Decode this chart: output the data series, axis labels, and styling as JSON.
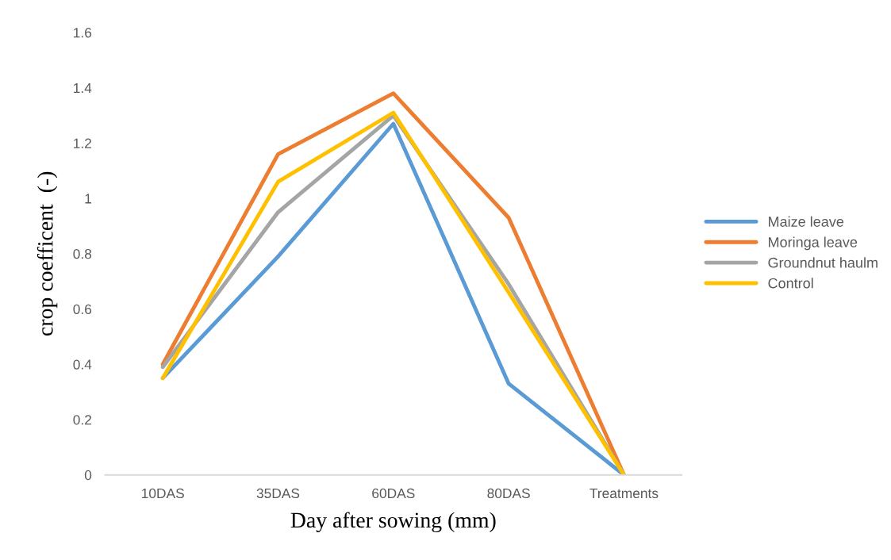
{
  "chart_data": {
    "type": "line",
    "xlabel": "Day after sowing (mm)",
    "ylabel": "crop coefficent  (-)",
    "categories": [
      "10DAS",
      "35DAS",
      "60DAS",
      "80DAS",
      "Treatments"
    ],
    "series": [
      {
        "name": "Maize leave",
        "color": "#5b9bd5",
        "values": [
          0.35,
          0.79,
          1.27,
          0.33,
          0
        ]
      },
      {
        "name": "Moringa leave",
        "color": "#ed7d31",
        "values": [
          0.4,
          1.16,
          1.38,
          0.93,
          0
        ]
      },
      {
        "name": "Groundnut haulm",
        "color": "#a5a5a5",
        "values": [
          0.39,
          0.95,
          1.3,
          0.69,
          0
        ]
      },
      {
        "name": "Control",
        "color": "#ffc000",
        "values": [
          0.35,
          1.06,
          1.31,
          0.66,
          0
        ]
      }
    ],
    "ylim": [
      0,
      1.6
    ],
    "yticks": [
      0,
      0.2,
      0.4,
      0.6,
      0.8,
      1,
      1.2,
      1.4,
      1.6
    ],
    "grid": false,
    "legend": "right",
    "marker": "none",
    "line_style": "solid"
  }
}
